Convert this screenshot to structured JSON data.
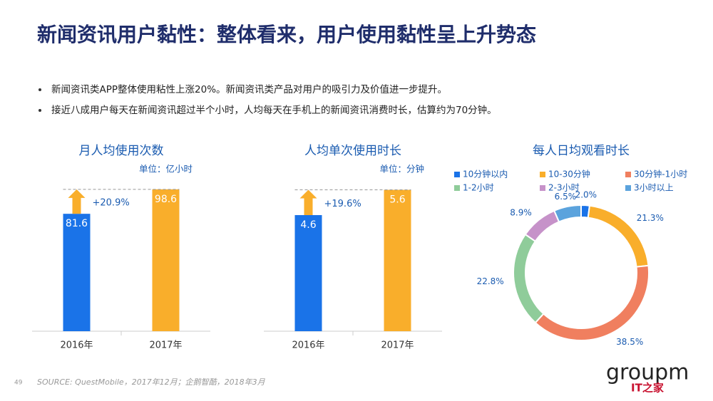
{
  "title": "新闻资讯用户黏性：整体看来，用户使用黏性呈上升势态",
  "bullets": [
    "新闻资讯类APP整体使用粘性上涨20%。新闻资讯类产品对用户的吸引力及价值进一步提升。",
    "接近八成用户每天在新闻资讯超过半个小时，人均每天在手机上的新闻资讯消费时长，估算约为70分钟。"
  ],
  "chart_data": [
    {
      "type": "bar",
      "title": "月人均使用次数",
      "subtitle": "单位：亿小时",
      "categories": [
        "2016年",
        "2017年"
      ],
      "values": [
        81.6,
        98.6
      ],
      "colors": [
        "#1a73e8",
        "#f9ae2b"
      ],
      "annotation": "+20.9%",
      "ylim": [
        0,
        100
      ]
    },
    {
      "type": "bar",
      "title": "人均单次使用时长",
      "subtitle": "单位：分钟",
      "categories": [
        "2016年",
        "2017年"
      ],
      "values": [
        4.6,
        5.6
      ],
      "colors": [
        "#1a73e8",
        "#f9ae2b"
      ],
      "annotation": "+19.6%",
      "ylim": [
        0,
        5.7
      ]
    },
    {
      "type": "donut",
      "title": "每人日均观看时长",
      "categories": [
        "10分钟以内",
        "10-30分钟",
        "30分钟-1小时",
        "1-2小时",
        "2-3小时",
        "3小时以上"
      ],
      "values": [
        2.0,
        21.3,
        38.5,
        22.8,
        8.9,
        6.5
      ],
      "value_labels": [
        "2.0%",
        "21.3%",
        "38.5%",
        "22.8%",
        "8.9%",
        "6.5%"
      ],
      "colors": [
        "#1a73e8",
        "#f9ae2b",
        "#f07f5f",
        "#8fcc9a",
        "#c692c9",
        "#5ba3dd"
      ]
    }
  ],
  "page_number": 49,
  "source": "SOURCE: QuestMobile，2017年12月；企鹅智酷，2018年3月",
  "logo": "groupm",
  "watermark": "IT之家"
}
